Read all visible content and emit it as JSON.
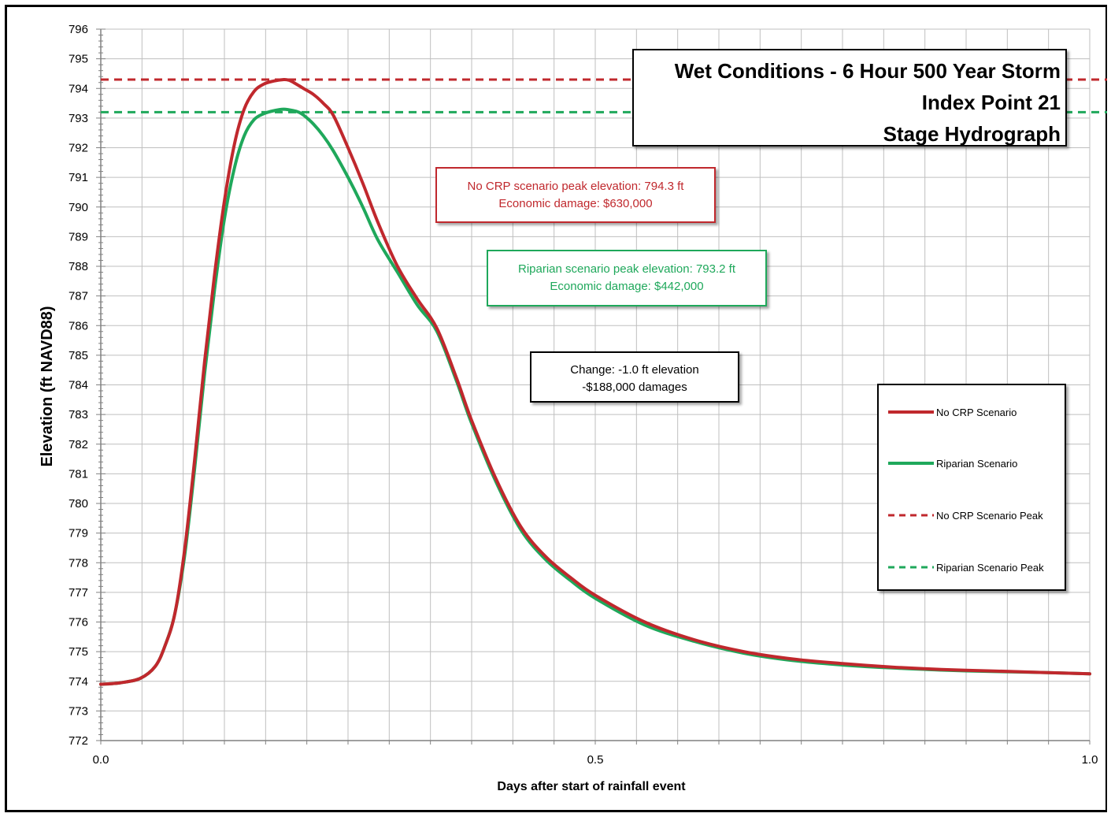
{
  "chart_data": {
    "type": "line",
    "title": [
      "Wet Conditions - 6 Hour 500 Year Storm",
      "Index Point 21",
      "Stage Hydrograph"
    ],
    "xlabel": "Days after start of rainfall event",
    "ylabel": "Elevation (ft NAVD88)",
    "xlim": [
      0,
      1.0
    ],
    "ylim": [
      772,
      796
    ],
    "x_ticks": [
      "0.0",
      "0.5",
      "1.0"
    ],
    "y_ticks": [
      "772",
      "773",
      "774",
      "775",
      "776",
      "777",
      "778",
      "779",
      "780",
      "781",
      "782",
      "783",
      "784",
      "785",
      "786",
      "787",
      "788",
      "789",
      "790",
      "791",
      "792",
      "793",
      "794",
      "795",
      "796"
    ],
    "grid": true,
    "legend_position": "right",
    "series": [
      {
        "name": "No CRP Scenario",
        "color": "#c0282d",
        "style": "solid",
        "x": [
          0,
          0.02,
          0.04,
          0.055,
          0.065,
          0.075,
          0.085,
          0.095,
          0.105,
          0.115,
          0.125,
          0.135,
          0.145,
          0.155,
          0.165,
          0.175,
          0.185,
          0.19,
          0.195,
          0.205,
          0.215,
          0.225,
          0.235,
          0.25,
          0.265,
          0.28,
          0.3,
          0.32,
          0.34,
          0.36,
          0.375,
          0.4,
          0.425,
          0.45,
          0.475,
          0.5,
          0.55,
          0.6,
          0.65,
          0.7,
          0.75,
          0.8,
          0.85,
          0.9,
          0.95,
          1.0
        ],
        "y": [
          773.9,
          773.95,
          774.1,
          774.5,
          775.2,
          776.3,
          778.5,
          781.5,
          784.8,
          787.7,
          790.2,
          792.1,
          793.3,
          793.9,
          794.15,
          794.25,
          794.3,
          794.28,
          794.2,
          794.0,
          793.8,
          793.5,
          793.1,
          792.0,
          790.8,
          789.5,
          788.0,
          786.9,
          785.9,
          784.2,
          782.8,
          780.8,
          779.2,
          778.2,
          777.5,
          776.9,
          776.0,
          775.4,
          775.0,
          774.75,
          774.6,
          774.48,
          774.4,
          774.35,
          774.3,
          774.25
        ]
      },
      {
        "name": "Riparian Scenario",
        "color": "#1fa85b",
        "style": "solid",
        "x": [
          0,
          0.02,
          0.04,
          0.055,
          0.065,
          0.075,
          0.085,
          0.095,
          0.105,
          0.115,
          0.125,
          0.135,
          0.145,
          0.155,
          0.165,
          0.175,
          0.185,
          0.195,
          0.2,
          0.205,
          0.215,
          0.225,
          0.235,
          0.25,
          0.265,
          0.28,
          0.3,
          0.32,
          0.34,
          0.36,
          0.375,
          0.4,
          0.425,
          0.45,
          0.475,
          0.5,
          0.55,
          0.6,
          0.65,
          0.7,
          0.75,
          0.8,
          0.85,
          0.9,
          0.95,
          1.0
        ],
        "y": [
          773.9,
          773.95,
          774.1,
          774.5,
          775.2,
          776.3,
          778.3,
          781.2,
          784.4,
          787.2,
          789.6,
          791.3,
          792.4,
          792.95,
          793.15,
          793.25,
          793.3,
          793.25,
          793.2,
          793.1,
          792.8,
          792.4,
          791.9,
          791.0,
          790.0,
          788.9,
          787.8,
          786.7,
          785.8,
          784.1,
          782.7,
          780.7,
          779.1,
          778.1,
          777.4,
          776.8,
          775.9,
          775.35,
          774.95,
          774.7,
          774.55,
          774.45,
          774.38,
          774.33,
          774.3,
          774.25
        ]
      },
      {
        "name": "No CRP Scenario Peak",
        "color": "#c0282d",
        "style": "dashed",
        "x": [
          0,
          1.0
        ],
        "y": [
          794.3,
          794.3
        ]
      },
      {
        "name": "Riparian Scenario Peak",
        "color": "#1fa85b",
        "style": "dashed",
        "x": [
          0,
          1.0
        ],
        "y": [
          793.2,
          793.2
        ]
      }
    ],
    "annotations": [
      [
        "No CRP scenario peak elevation: 794.3 ft",
        "Economic damage: $630,000"
      ],
      [
        "Riparian scenario peak elevation: 793.2 ft",
        "Economic damage: $442,000"
      ],
      [
        "Change: -1.0 ft elevation",
        "-$188,000 damages"
      ]
    ]
  },
  "title_lines": [
    "Wet Conditions - 6 Hour 500 Year Storm",
    "Index Point 21",
    "Stage Hydrograph"
  ],
  "notes": {
    "nocrp": {
      "line1": "No CRP scenario peak elevation: 794.3 ft",
      "line2": "Economic damage: $630,000"
    },
    "riparian": {
      "line1": "Riparian scenario peak elevation: 793.2 ft",
      "line2": "Economic damage: $442,000"
    },
    "change": {
      "line1": "Change: -1.0 ft elevation",
      "line2": "-$188,000 damages"
    }
  },
  "legend": [
    "No CRP Scenario",
    "Riparian Scenario",
    "No CRP Scenario Peak",
    "Riparian Scenario Peak"
  ]
}
